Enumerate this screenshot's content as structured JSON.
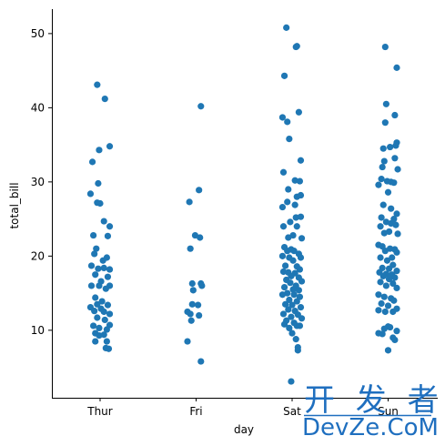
{
  "chart_data": {
    "type": "scatter",
    "subtype": "strip",
    "xlabel": "day",
    "ylabel": "total_bill",
    "categories": [
      "Thur",
      "Fri",
      "Sat",
      "Sun"
    ],
    "yticks": [
      10,
      20,
      30,
      40,
      50
    ],
    "ylim": [
      0.9,
      53.3
    ],
    "grid": false,
    "color": "#1f77b4",
    "series": [
      {
        "values": [
          [
            -0.03,
            43.1
          ],
          [
            0.05,
            41.2
          ],
          [
            0.1,
            34.8
          ],
          [
            -0.01,
            34.3
          ],
          [
            -0.08,
            32.7
          ],
          [
            -0.02,
            29.8
          ],
          [
            -0.1,
            28.4
          ],
          [
            -0.03,
            27.2
          ],
          [
            0.0,
            27.1
          ],
          [
            0.04,
            24.7
          ],
          [
            0.1,
            24.0
          ],
          [
            -0.07,
            22.8
          ],
          [
            0.08,
            22.7
          ],
          [
            -0.04,
            21.0
          ],
          [
            -0.06,
            20.3
          ],
          [
            0.07,
            19.8
          ],
          [
            0.03,
            19.4
          ],
          [
            -0.09,
            18.7
          ],
          [
            -0.02,
            18.3
          ],
          [
            0.04,
            18.4
          ],
          [
            0.1,
            18.2
          ],
          [
            -0.05,
            17.5
          ],
          [
            0.08,
            17.2
          ],
          [
            0.01,
            16.6
          ],
          [
            -0.09,
            16.0
          ],
          [
            -0.01,
            16.0
          ],
          [
            0.1,
            16.0
          ],
          [
            0.06,
            15.6
          ],
          [
            -0.05,
            14.4
          ],
          [
            0.02,
            13.9
          ],
          [
            -0.03,
            13.5
          ],
          [
            0.08,
            13.4
          ],
          [
            -0.1,
            13.1
          ],
          [
            0.01,
            12.9
          ],
          [
            -0.06,
            12.6
          ],
          [
            0.04,
            12.5
          ],
          [
            0.1,
            12.2
          ],
          [
            -0.03,
            11.7
          ],
          [
            0.05,
            11.4
          ],
          [
            0.1,
            10.7
          ],
          [
            -0.07,
            10.6
          ],
          [
            -0.01,
            10.3
          ],
          [
            0.07,
            10.1
          ],
          [
            -0.05,
            9.6
          ],
          [
            -0.01,
            9.3
          ],
          [
            0.04,
            9.4
          ],
          [
            -0.05,
            8.5
          ],
          [
            0.07,
            8.5
          ],
          [
            0.06,
            7.6
          ],
          [
            0.09,
            7.5
          ]
        ]
      },
      {
        "values": [
          [
            0.05,
            40.2
          ],
          [
            0.03,
            28.9
          ],
          [
            -0.07,
            27.3
          ],
          [
            -0.01,
            22.8
          ],
          [
            0.04,
            22.5
          ],
          [
            -0.06,
            21.0
          ],
          [
            0.05,
            16.3
          ],
          [
            -0.04,
            16.3
          ],
          [
            -0.03,
            15.4
          ],
          [
            0.06,
            16.0
          ],
          [
            -0.04,
            13.5
          ],
          [
            0.02,
            13.4
          ],
          [
            -0.09,
            12.5
          ],
          [
            -0.06,
            12.2
          ],
          [
            0.03,
            12.0
          ],
          [
            -0.05,
            11.3
          ],
          [
            -0.09,
            8.5
          ],
          [
            0.05,
            5.8
          ]
        ]
      },
      {
        "values": [
          [
            -0.06,
            50.8
          ],
          [
            0.04,
            48.2
          ],
          [
            0.05,
            48.3
          ],
          [
            -0.08,
            44.3
          ],
          [
            0.07,
            39.4
          ],
          [
            -0.1,
            38.7
          ],
          [
            -0.05,
            38.1
          ],
          [
            -0.03,
            35.8
          ],
          [
            0.09,
            32.9
          ],
          [
            -0.09,
            31.3
          ],
          [
            0.03,
            30.2
          ],
          [
            0.08,
            30.1
          ],
          [
            -0.04,
            29.0
          ],
          [
            0.05,
            28.0
          ],
          [
            0.09,
            28.2
          ],
          [
            -0.05,
            27.3
          ],
          [
            0.03,
            26.9
          ],
          [
            -0.1,
            26.6
          ],
          [
            0.04,
            25.2
          ],
          [
            0.09,
            25.3
          ],
          [
            -0.02,
            24.6
          ],
          [
            -0.09,
            24.0
          ],
          [
            0.05,
            24.0
          ],
          [
            0.01,
            22.8
          ],
          [
            -0.04,
            22.5
          ],
          [
            0.1,
            22.4
          ],
          [
            -0.08,
            21.2
          ],
          [
            -0.05,
            20.7
          ],
          [
            -0.01,
            20.9
          ],
          [
            0.02,
            20.7
          ],
          [
            0.07,
            20.3
          ],
          [
            -0.1,
            20.0
          ],
          [
            -0.03,
            19.8
          ],
          [
            0.09,
            19.8
          ],
          [
            0.01,
            19.4
          ],
          [
            -0.07,
            18.7
          ],
          [
            0.05,
            18.6
          ],
          [
            0.08,
            18.2
          ],
          [
            -0.09,
            17.9
          ],
          [
            -0.04,
            17.8
          ],
          [
            0.03,
            17.7
          ],
          [
            -0.01,
            17.3
          ],
          [
            0.07,
            17.1
          ],
          [
            -0.06,
            16.8
          ],
          [
            0.1,
            16.6
          ],
          [
            -0.02,
            16.4
          ],
          [
            0.04,
            16.0
          ],
          [
            -0.08,
            15.8
          ],
          [
            0.01,
            15.5
          ],
          [
            0.07,
            15.4
          ],
          [
            -0.05,
            15.0
          ],
          [
            -0.1,
            14.8
          ],
          [
            0.02,
            14.8
          ],
          [
            0.08,
            14.5
          ],
          [
            -0.03,
            14.1
          ],
          [
            0.05,
            13.9
          ],
          [
            -0.07,
            13.5
          ],
          [
            0.0,
            13.4
          ],
          [
            0.09,
            13.1
          ],
          [
            -0.04,
            12.8
          ],
          [
            0.03,
            12.6
          ],
          [
            -0.09,
            12.2
          ],
          [
            0.06,
            12.1
          ],
          [
            -0.01,
            11.8
          ],
          [
            0.1,
            11.6
          ],
          [
            -0.06,
            11.3
          ],
          [
            0.02,
            11.0
          ],
          [
            -0.08,
            10.8
          ],
          [
            0.05,
            10.6
          ],
          [
            -0.03,
            10.3
          ],
          [
            0.08,
            10.6
          ],
          [
            0.0,
            9.6
          ],
          [
            0.04,
            8.8
          ],
          [
            0.06,
            7.7
          ],
          [
            0.06,
            7.3
          ],
          [
            -0.01,
            3.1
          ]
        ]
      },
      {
        "values": [
          [
            -0.03,
            48.2
          ],
          [
            0.09,
            45.4
          ],
          [
            -0.02,
            40.5
          ],
          [
            0.07,
            39.0
          ],
          [
            -0.03,
            38.0
          ],
          [
            0.09,
            35.3
          ],
          [
            0.08,
            34.9
          ],
          [
            0.02,
            34.7
          ],
          [
            -0.05,
            34.5
          ],
          [
            0.07,
            33.2
          ],
          [
            -0.04,
            32.8
          ],
          [
            -0.06,
            32.0
          ],
          [
            0.1,
            31.7
          ],
          [
            -0.07,
            30.4
          ],
          [
            -0.01,
            30.1
          ],
          [
            0.03,
            30.0
          ],
          [
            0.06,
            29.9
          ],
          [
            -0.1,
            29.6
          ],
          [
            0.0,
            28.6
          ],
          [
            -0.05,
            26.9
          ],
          [
            0.03,
            26.4
          ],
          [
            0.09,
            25.7
          ],
          [
            -0.07,
            25.2
          ],
          [
            0.06,
            25.0
          ],
          [
            -0.02,
            24.6
          ],
          [
            0.03,
            24.4
          ],
          [
            -0.08,
            24.0
          ],
          [
            0.08,
            24.2
          ],
          [
            0.01,
            23.3
          ],
          [
            -0.04,
            23.1
          ],
          [
            0.1,
            23.0
          ],
          [
            -0.1,
            21.5
          ],
          [
            -0.06,
            21.3
          ],
          [
            0.02,
            21.0
          ],
          [
            0.07,
            20.9
          ],
          [
            -0.03,
            20.7
          ],
          [
            0.09,
            20.5
          ],
          [
            -0.08,
            19.8
          ],
          [
            0.04,
            19.8
          ],
          [
            -0.01,
            19.4
          ],
          [
            0.05,
            18.8
          ],
          [
            -0.06,
            18.4
          ],
          [
            0.01,
            18.3
          ],
          [
            0.09,
            18.0
          ],
          [
            -0.09,
            17.8
          ],
          [
            -0.02,
            17.6
          ],
          [
            0.04,
            17.5
          ],
          [
            -0.05,
            17.3
          ],
          [
            0.07,
            17.1
          ],
          [
            0.01,
            16.9
          ],
          [
            -0.08,
            16.5
          ],
          [
            0.05,
            16.3
          ],
          [
            -0.02,
            16.0
          ],
          [
            0.09,
            15.7
          ],
          [
            -0.1,
            14.8
          ],
          [
            -0.04,
            14.5
          ],
          [
            0.03,
            14.3
          ],
          [
            0.06,
            14.0
          ],
          [
            -0.07,
            13.6
          ],
          [
            0.0,
            13.3
          ],
          [
            0.09,
            12.9
          ],
          [
            -0.1,
            12.7
          ],
          [
            -0.03,
            12.5
          ],
          [
            0.05,
            12.5
          ],
          [
            0.0,
            10.5
          ],
          [
            -0.04,
            10.2
          ],
          [
            0.02,
            10.4
          ],
          [
            0.09,
            9.9
          ],
          [
            -0.1,
            9.6
          ],
          [
            -0.06,
            9.5
          ],
          [
            0.05,
            9.0
          ],
          [
            0.07,
            8.7
          ],
          [
            0.0,
            7.3
          ]
        ]
      }
    ]
  },
  "watermark": {
    "line1": "开 发 者",
    "line2": "DevZe.CoM"
  }
}
